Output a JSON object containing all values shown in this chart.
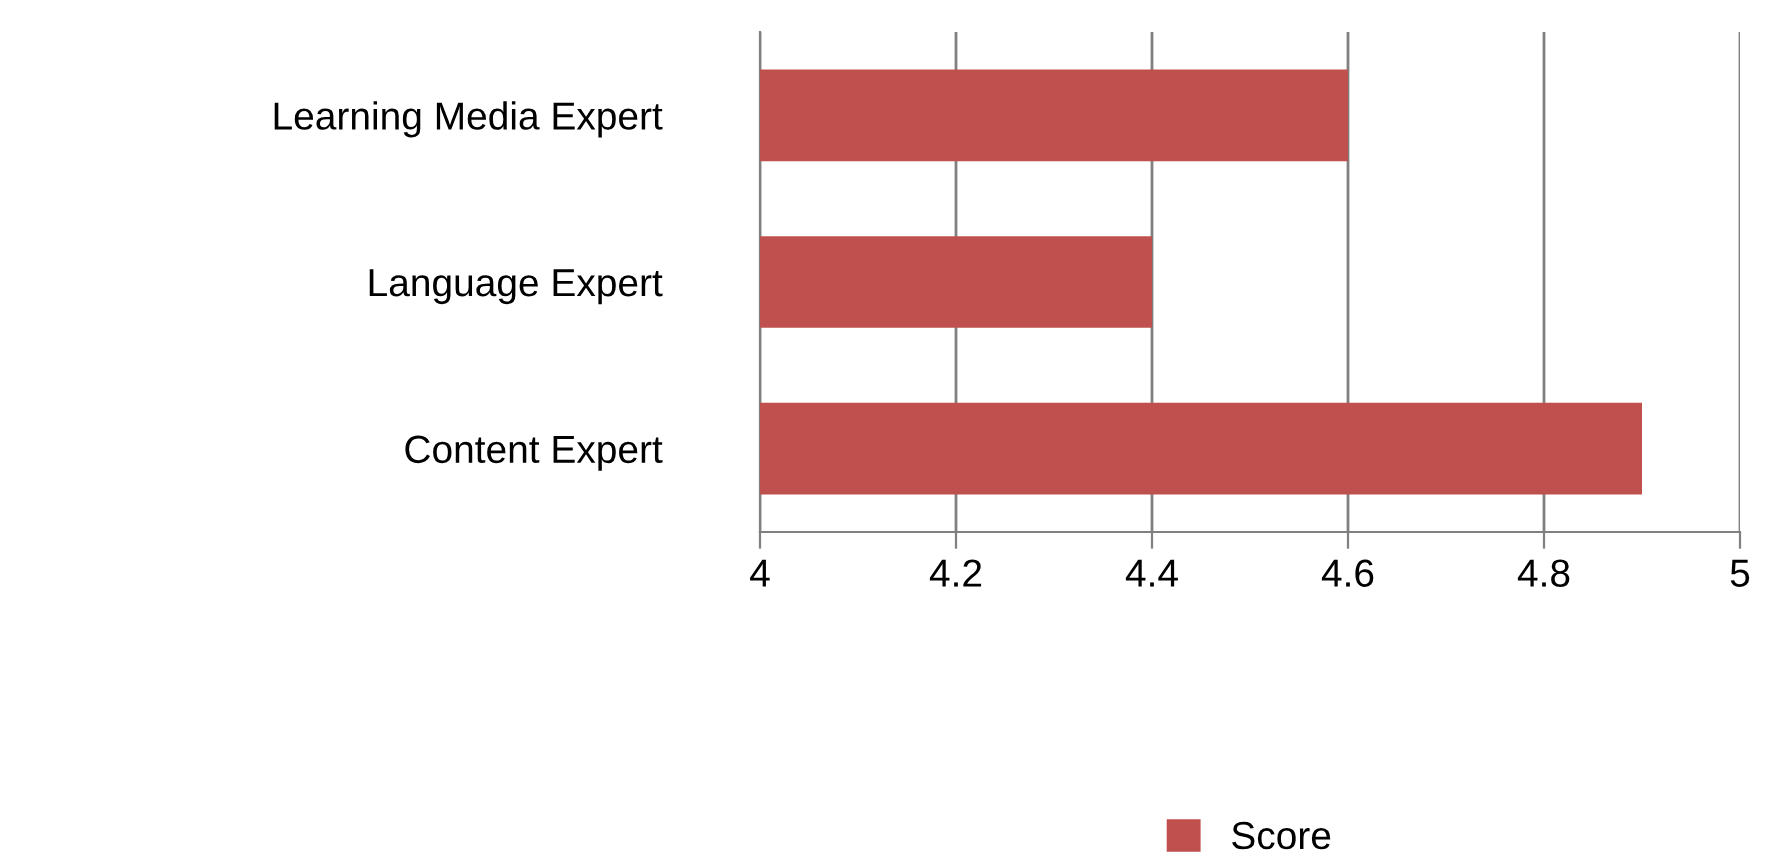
{
  "chart_data": {
    "type": "bar",
    "orientation": "horizontal",
    "categories": [
      "Learning Media Expert",
      "Language Expert",
      "Content Expert"
    ],
    "series": [
      {
        "name": "Score",
        "color": "#c0504d",
        "values": [
          4.6,
          4.4,
          4.9
        ]
      }
    ],
    "xlim": [
      4,
      5
    ],
    "xticks": [
      4,
      4.2,
      4.4,
      4.6,
      4.8,
      5
    ],
    "grid": "x",
    "legend": "bottom"
  }
}
